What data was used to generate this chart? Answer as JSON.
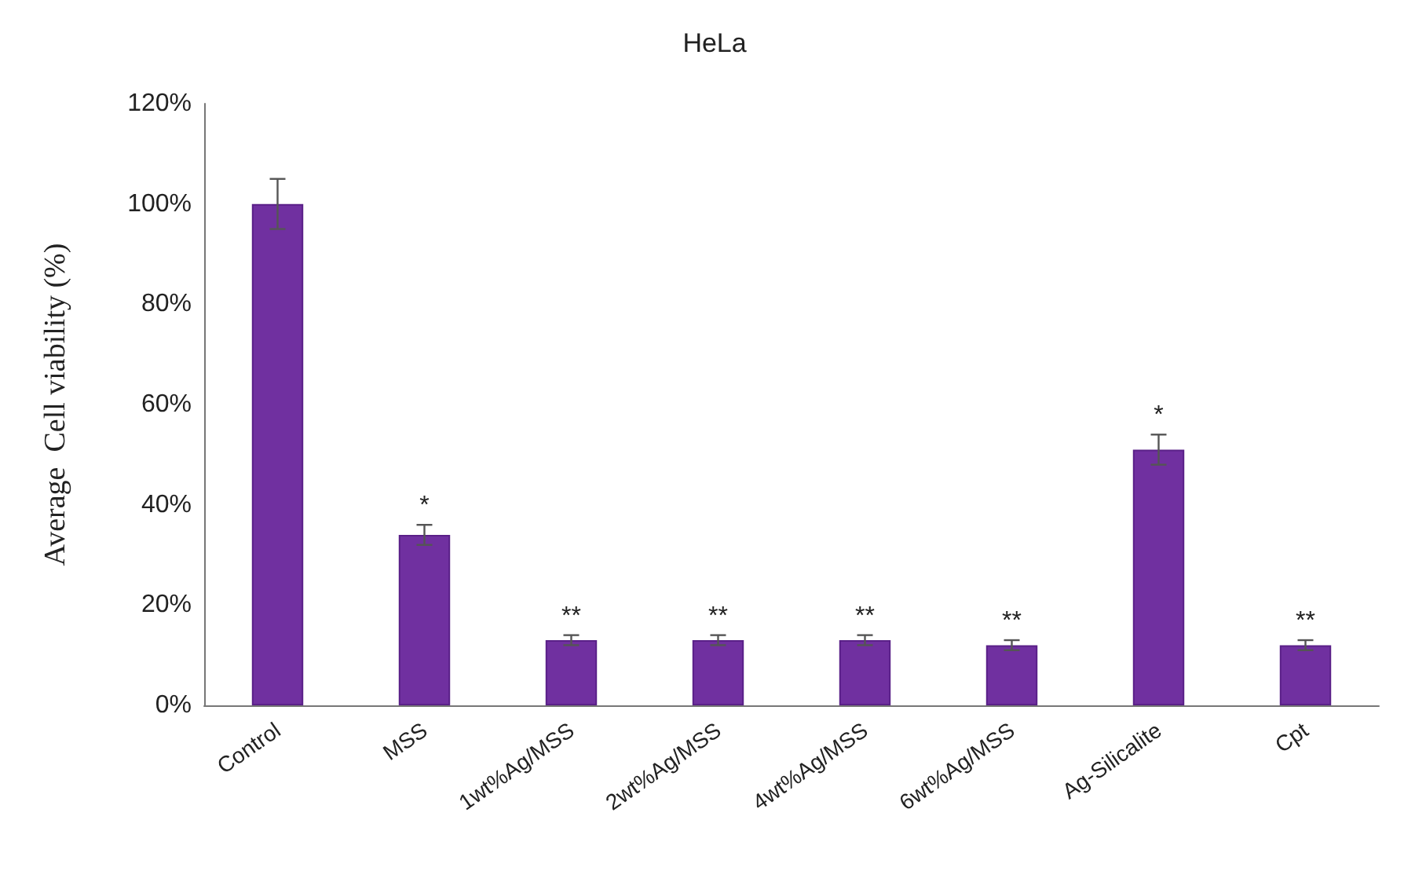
{
  "chart_data": {
    "type": "bar",
    "title": "HeLa",
    "ylabel": "Average  Cell viability (%)",
    "categories": [
      "Control",
      "MSS",
      "1wt%Ag/MSS",
      "2wt%Ag/MSS",
      "4wt%Ag/MSS",
      "6wt%Ag/MSS",
      "Ag-Silicalite",
      "Cpt"
    ],
    "values": [
      100,
      34,
      13,
      13,
      13,
      12,
      51,
      12
    ],
    "errors": [
      5,
      2,
      1,
      1,
      1,
      1,
      3,
      1
    ],
    "color": "#7030a0",
    "ylim": [
      0,
      120
    ],
    "yticks": [
      {
        "value": 0,
        "label": "0%"
      },
      {
        "value": 20,
        "label": "20%"
      },
      {
        "value": 40,
        "label": "40%"
      },
      {
        "value": 60,
        "label": "60%"
      },
      {
        "value": 80,
        "label": "80%"
      },
      {
        "value": 100,
        "label": "100%"
      },
      {
        "value": 120,
        "label": "120%"
      }
    ],
    "grid": false,
    "annotations": [
      {
        "text": "*",
        "x": "MSS",
        "y": 34
      },
      {
        "text": "**",
        "x": "1wt%Ag/MSS",
        "y": 13
      },
      {
        "text": "**",
        "x": "2wt%Ag/MSS",
        "y": 13
      },
      {
        "text": "**",
        "x": "4wt%Ag/MSS",
        "y": 13
      },
      {
        "text": "**",
        "x": "6wt%Ag/MSS",
        "y": 12
      },
      {
        "text": "*",
        "x": "Ag-Silicalite",
        "y": 51
      },
      {
        "text": "**",
        "x": "Cpt",
        "y": 12
      }
    ]
  }
}
